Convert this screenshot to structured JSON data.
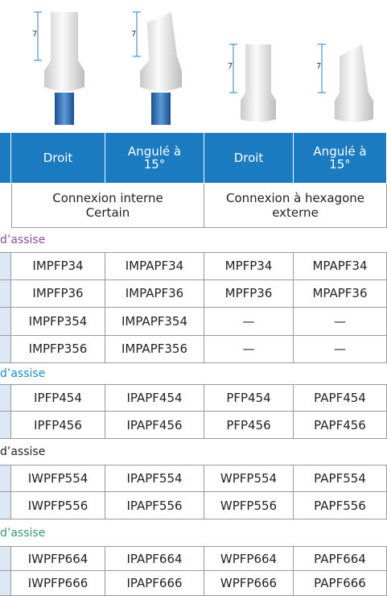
{
  "images": [
    {
      "dimension": "7"
    },
    {
      "dimension": "7"
    },
    {
      "dimension": "7"
    },
    {
      "dimension": "7"
    }
  ],
  "table": {
    "header": [
      "Droit",
      "Angulé à 15°",
      "Droit",
      "Angulé à 15°"
    ],
    "connections": [
      "Connexion interne Certain",
      "Connexion à hexagone externe"
    ],
    "sections": [
      {
        "label": "d’assise",
        "color": "#8a4f9e",
        "rows": [
          [
            "IMPFP34",
            "IMPAPF34",
            "MPFP34",
            "MPAPF34"
          ],
          [
            "IMPFP36",
            "IMPAPF36",
            "MPFP36",
            "MPAPF36"
          ],
          [
            "IMPFP354",
            "IMPAPF354",
            "—",
            "—"
          ],
          [
            "IMPFP356",
            "IMPAPF356",
            "—",
            "—"
          ]
        ]
      },
      {
        "label": "d’assise",
        "color": "#1a8fc9",
        "rows": [
          [
            "IPFP454",
            "IPAPF454",
            "PFP454",
            "PAPF454"
          ],
          [
            "IPFP456",
            "IPAPF456",
            "PFP456",
            "PAPF456"
          ]
        ]
      },
      {
        "label": "d’assise",
        "color": "#222222",
        "rows": [
          [
            "IWPFP554",
            "IPAPF554",
            "WPFP554",
            "PAPF554"
          ],
          [
            "IWPFP556",
            "IPAPF556",
            "WPFP556",
            "PAPF556"
          ]
        ]
      },
      {
        "label": "d’assise",
        "color": "#3a9a6a",
        "rows": [
          [
            "IWPFP664",
            "IPAPF664",
            "WPFP664",
            "PAPF664"
          ],
          [
            "IWPFP666",
            "IPAPF666",
            "WPFP666",
            "PAPF666"
          ]
        ]
      }
    ]
  }
}
